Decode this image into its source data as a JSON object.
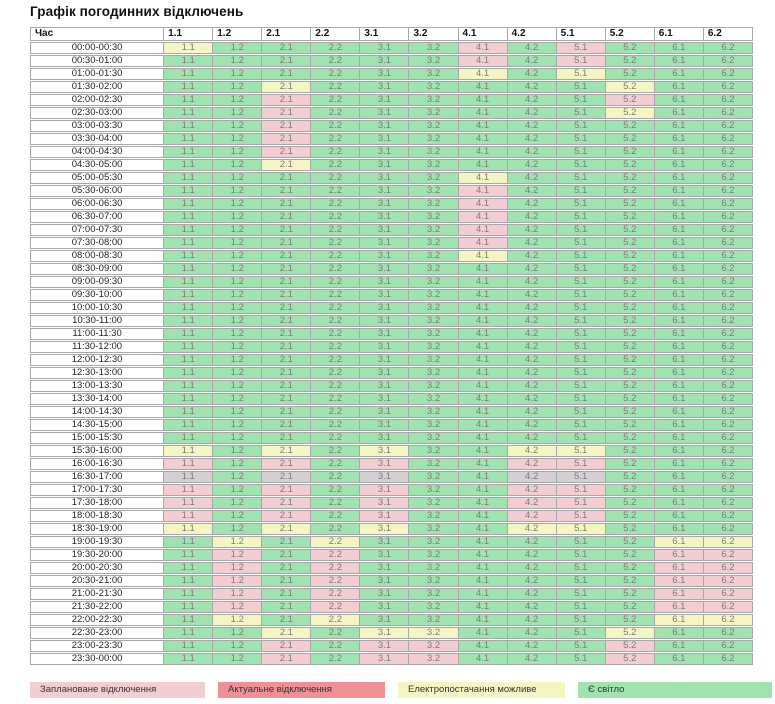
{
  "title": "Графік погодинних відключень",
  "colors": {
    "G": "#9fe3b0",
    "P": "#f4cdd2",
    "Y": "#f5f5c4",
    "X": "#d4cfd3",
    "R": "#ee9095"
  },
  "table": {
    "time_header": "Час",
    "columns": [
      "1.1",
      "1.2",
      "2.1",
      "2.2",
      "3.1",
      "3.2",
      "4.1",
      "4.2",
      "5.1",
      "5.2",
      "6.1",
      "6.2"
    ],
    "rows": [
      {
        "time": "00:00-00:30",
        "states": "YGGGGGPGPGGG"
      },
      {
        "time": "00:30-01:00",
        "states": "GGGGGGPGPGGG"
      },
      {
        "time": "01:00-01:30",
        "states": "GGGGGGYGYGGG"
      },
      {
        "time": "01:30-02:00",
        "states": "GGYGGGGGGYGG"
      },
      {
        "time": "02:00-02:30",
        "states": "GGPGGGGGGPGG"
      },
      {
        "time": "02:30-03:00",
        "states": "GGPGGGGGGYGG"
      },
      {
        "time": "03:00-03:30",
        "states": "GGPGGGGGGGGG"
      },
      {
        "time": "03:30-04:00",
        "states": "GGPGGGGGGGGG"
      },
      {
        "time": "04:00-04:30",
        "states": "GGPGGGGGGGGG"
      },
      {
        "time": "04:30-05:00",
        "states": "GGYGGGGGGGGG"
      },
      {
        "time": "05:00-05:30",
        "states": "GGGGGGYGGGGG"
      },
      {
        "time": "05:30-06:00",
        "states": "GGGGGGPGGGGG"
      },
      {
        "time": "06:00-06:30",
        "states": "GGGGGGPGGGGG"
      },
      {
        "time": "06:30-07:00",
        "states": "GGGGGGPGGGGG"
      },
      {
        "time": "07:00-07:30",
        "states": "GGGGGGPGGGGG"
      },
      {
        "time": "07:30-08:00",
        "states": "GGGGGGPGGGGG"
      },
      {
        "time": "08:00-08:30",
        "states": "GGGGGGYGGGGG"
      },
      {
        "time": "08:30-09:00",
        "states": "GGGGGGGGGGGG"
      },
      {
        "time": "09:00-09:30",
        "states": "GGGGGGGGGGGG"
      },
      {
        "time": "09:30-10:00",
        "states": "GGGGGGGGGGGG"
      },
      {
        "time": "10:00-10:30",
        "states": "GGGGGGGGGGGG"
      },
      {
        "time": "10:30-11:00",
        "states": "GGGGGGGGGGGG"
      },
      {
        "time": "11:00-11:30",
        "states": "GGGGGGGGGGGG"
      },
      {
        "time": "11:30-12:00",
        "states": "GGGGGGGGGGGG"
      },
      {
        "time": "12:00-12:30",
        "states": "GGGGGGGGGGGG"
      },
      {
        "time": "12:30-13:00",
        "states": "GGGGGGGGGGGG"
      },
      {
        "time": "13:00-13:30",
        "states": "GGGGGGGGGGGG"
      },
      {
        "time": "13:30-14:00",
        "states": "GGGGGGGGGGGG"
      },
      {
        "time": "14:00-14:30",
        "states": "GGGGGGGGGGGG"
      },
      {
        "time": "14:30-15:00",
        "states": "GGGGGGGGGGGG"
      },
      {
        "time": "15:00-15:30",
        "states": "GGGGGGGGGGGG"
      },
      {
        "time": "15:30-16:00",
        "states": "YGYGYGGYYGGG"
      },
      {
        "time": "16:00-16:30",
        "states": "PGPGPGGPPGGG"
      },
      {
        "time": "16:30-17:00",
        "states": "XGXGXGGXXGGG"
      },
      {
        "time": "17:00-17:30",
        "states": "PGPGPGGPPGGG"
      },
      {
        "time": "17:30-18:00",
        "states": "PGPGPGGPPGGG"
      },
      {
        "time": "18:00-18:30",
        "states": "PGPGPGGPPGGG"
      },
      {
        "time": "18:30-19:00",
        "states": "YGYGYGGYYGGG"
      },
      {
        "time": "19:00-19:30",
        "states": "GYGYGGGGGGYY"
      },
      {
        "time": "19:30-20:00",
        "states": "GPGPGGGGGGPP"
      },
      {
        "time": "20:00-20:30",
        "states": "GPGPGGGGGGPP"
      },
      {
        "time": "20:30-21:00",
        "states": "GPGPGGGGGGPP"
      },
      {
        "time": "21:00-21:30",
        "states": "GPGPGGGGGGPP"
      },
      {
        "time": "21:30-22:00",
        "states": "GPGPGGGGGGPP"
      },
      {
        "time": "22:00-22:30",
        "states": "GYGYGGGGGGYY"
      },
      {
        "time": "22:30-23:00",
        "states": "GGYGYYGGGYGG"
      },
      {
        "time": "23:00-23:30",
        "states": "GGPGPPGGGPGG"
      },
      {
        "time": "23:30-00:00",
        "states": "GGPGPPGGGPGG"
      }
    ]
  },
  "legend": [
    {
      "label": "Заплановане відключення",
      "state": "P",
      "width": 175
    },
    {
      "label": "Актуальне відключення",
      "state": "R",
      "width": 167
    },
    {
      "label": "Електропостачання можливе",
      "state": "Y",
      "width": 167
    },
    {
      "label": "Є світло",
      "state": "G",
      "width": 194
    }
  ]
}
